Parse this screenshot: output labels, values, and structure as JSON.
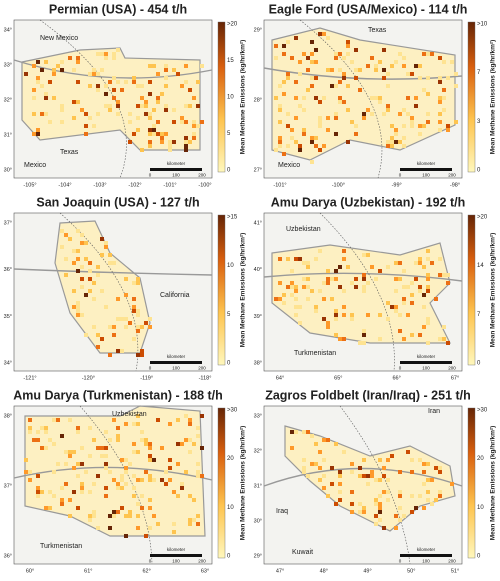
{
  "colorbar_label": "Mean Methane Emissions (kg/hr/km²)",
  "scale_bar": {
    "unit": "kilometer",
    "ticks": [
      "0",
      "100",
      "200"
    ]
  },
  "panels": [
    {
      "title": "Permian (USA) - 454 t/h",
      "regions": [
        "New Mexico",
        "Texas",
        "Mexico"
      ],
      "lat_ticks": [
        "34°",
        "33°",
        "32°",
        "31°",
        "30°"
      ],
      "lon_ticks": [
        "-105°",
        "-104°",
        "-103°",
        "-102°",
        "-101°",
        "-100°"
      ],
      "colorbar_ticks": [
        ">20",
        "15",
        "10",
        "5",
        "0"
      ]
    },
    {
      "title": "Eagle Ford (USA/Mexico) - 114 t/h",
      "regions": [
        "Texas",
        "Mexico"
      ],
      "lat_ticks": [
        "29°",
        "28°",
        "27°"
      ],
      "lon_ticks": [
        "-101°",
        "-100°",
        "-99°",
        "-98°"
      ],
      "colorbar_ticks": [
        ">10",
        "7",
        "3",
        "0"
      ]
    },
    {
      "title": "San Joaquin (USA) - 127 t/h",
      "regions": [
        "California"
      ],
      "lat_ticks": [
        "37°",
        "36°",
        "35°",
        "34°"
      ],
      "lon_ticks": [
        "-121°",
        "-120°",
        "-119°",
        "-118°"
      ],
      "colorbar_ticks": [
        ">15",
        "10",
        "5",
        "0"
      ]
    },
    {
      "title": "Amu Darya (Uzbekistan) - 192 t/h",
      "regions": [
        "Uzbekistan",
        "Turkmenistan"
      ],
      "lat_ticks": [
        "41°",
        "40°",
        "39°",
        "38°"
      ],
      "lon_ticks": [
        "64°",
        "65°",
        "66°",
        "67°"
      ],
      "colorbar_ticks": [
        ">20",
        "14",
        "7",
        "0"
      ]
    },
    {
      "title": "Amu Darya (Turkmenistan) - 188 t/h",
      "regions": [
        "Uzbekistan",
        "Turkmenistan"
      ],
      "lat_ticks": [
        "38°",
        "37°",
        "36°"
      ],
      "lon_ticks": [
        "60°",
        "61°",
        "62°",
        "63°"
      ],
      "colorbar_ticks": [
        ">30",
        "20",
        "10",
        "0"
      ]
    },
    {
      "title": "Zagros Foldbelt (Iran/Iraq) - 251 t/h",
      "regions": [
        "Iran",
        "Iraq",
        "Kuwait"
      ],
      "lat_ticks": [
        "33°",
        "32°",
        "31°",
        "30°",
        "29°"
      ],
      "lon_ticks": [
        "47°",
        "48°",
        "49°",
        "50°",
        "51°"
      ],
      "colorbar_ticks": [
        ">30",
        "20",
        "10",
        "0"
      ]
    }
  ]
}
